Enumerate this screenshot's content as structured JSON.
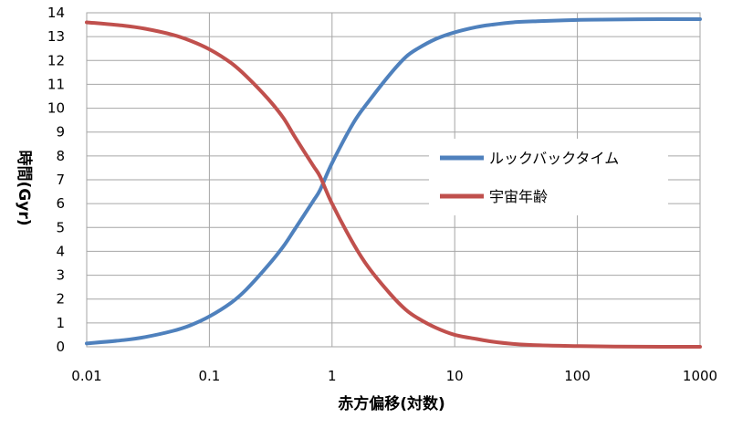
{
  "chart_data": {
    "type": "line",
    "xlabel": "赤方偏移(対数)",
    "ylabel": "時間(Gyr)",
    "x_scale": "log",
    "xlim": [
      0.01,
      1000
    ],
    "ylim": [
      0,
      14
    ],
    "x_ticks": [
      "0.01",
      "0.1",
      "1",
      "10",
      "100",
      "1000"
    ],
    "y_ticks": [
      "0",
      "1",
      "2",
      "3",
      "4",
      "5",
      "6",
      "7",
      "8",
      "9",
      "10",
      "11",
      "12",
      "13",
      "14"
    ],
    "grid": true,
    "legend_position": "right",
    "series": [
      {
        "name": "ルックバックタイム",
        "color": "#4f81bd",
        "x": [
          0.01,
          0.02,
          0.03,
          0.05,
          0.07,
          0.1,
          0.15,
          0.2,
          0.3,
          0.4,
          0.5,
          0.7,
          0.8,
          1,
          1.5,
          2,
          3,
          4,
          5,
          7,
          10,
          15,
          20,
          30,
          50,
          100,
          200,
          500,
          1000
        ],
        "y": [
          0.14,
          0.28,
          0.41,
          0.66,
          0.9,
          1.27,
          1.84,
          2.4,
          3.4,
          4.2,
          4.95,
          6.1,
          6.58,
          7.7,
          9.4,
          10.3,
          11.45,
          12.15,
          12.5,
          12.9,
          13.18,
          13.4,
          13.5,
          13.6,
          13.65,
          13.7,
          13.72,
          13.73,
          13.73
        ]
      },
      {
        "name": "宇宙年齢",
        "color": "#c0504d",
        "x": [
          0.01,
          0.02,
          0.03,
          0.05,
          0.07,
          0.1,
          0.15,
          0.2,
          0.3,
          0.4,
          0.5,
          0.7,
          0.8,
          1,
          1.5,
          2,
          3,
          4,
          5,
          7,
          10,
          15,
          20,
          30,
          50,
          100,
          200,
          500,
          1000
        ],
        "y": [
          13.6,
          13.46,
          13.33,
          13.08,
          12.83,
          12.47,
          11.9,
          11.34,
          10.4,
          9.6,
          8.78,
          7.6,
          7.13,
          6.0,
          4.3,
          3.3,
          2.2,
          1.55,
          1.2,
          0.8,
          0.5,
          0.33,
          0.22,
          0.12,
          0.06,
          0.03,
          0.01,
          0.0,
          0.0
        ]
      }
    ]
  }
}
